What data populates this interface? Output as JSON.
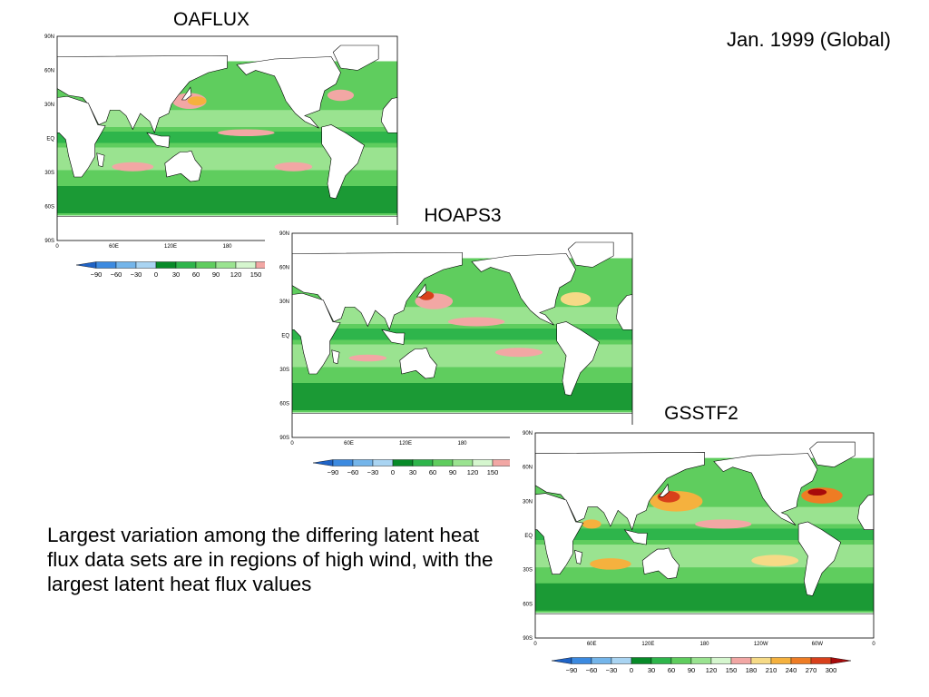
{
  "title": "Jan. 1999 (Global)",
  "caption": "Largest variation among the differing latent heat flux data sets are in regions of high wind, with the largest latent heat flux values",
  "panels": [
    {
      "label": "OAFLUX",
      "lat_labels": [
        "90N",
        "60N",
        "30N",
        "EQ",
        "30S",
        "60S",
        "90S"
      ],
      "lon_labels": [
        "0",
        "60E",
        "120E",
        "180"
      ],
      "colorbar_labels": [
        "−90",
        "−60",
        "−30",
        "0",
        "30",
        "60",
        "90",
        "120",
        "150"
      ]
    },
    {
      "label": "HOAPS3",
      "lat_labels": [
        "90N",
        "60N",
        "30N",
        "EQ",
        "30S",
        "60S",
        "90S"
      ],
      "lon_labels": [
        "0",
        "60E",
        "120E",
        "180"
      ],
      "colorbar_labels": [
        "−90",
        "−60",
        "−30",
        "0",
        "30",
        "60",
        "90",
        "120",
        "150"
      ]
    },
    {
      "label": "GSSTF2",
      "lat_labels": [
        "90N",
        "60N",
        "30N",
        "EQ",
        "30S",
        "60S",
        "90S"
      ],
      "lon_labels": [
        "0",
        "60E",
        "120E",
        "180",
        "120W",
        "60W",
        "0"
      ],
      "colorbar_labels": [
        "−90",
        "−60",
        "−30",
        "0",
        "30",
        "60",
        "90",
        "120",
        "150",
        "180",
        "210",
        "240",
        "270",
        "300"
      ]
    }
  ]
}
